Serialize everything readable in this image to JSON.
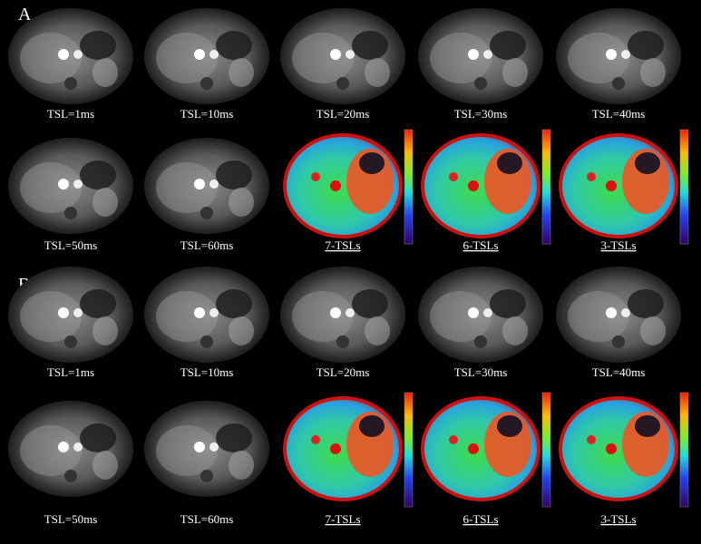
{
  "panels": [
    {
      "label": "A",
      "rows": [
        [
          "TSL=1ms",
          "TSL=10ms",
          "TSL=20ms",
          "TSL=30ms",
          "TSL=40ms"
        ],
        [
          "TSL=50ms",
          "TSL=60ms",
          "7-TSLs",
          "6-TSLs",
          "3-TSLs"
        ]
      ]
    },
    {
      "label": "B",
      "rows": [
        [
          "TSL=1ms",
          "TSL=10ms",
          "TSL=20ms",
          "TSL=30ms",
          "TSL=40ms"
        ],
        [
          "TSL=50ms",
          "TSL=60ms",
          "7-TSLs",
          "6-TSLs",
          "3-TSLs"
        ]
      ]
    }
  ]
}
